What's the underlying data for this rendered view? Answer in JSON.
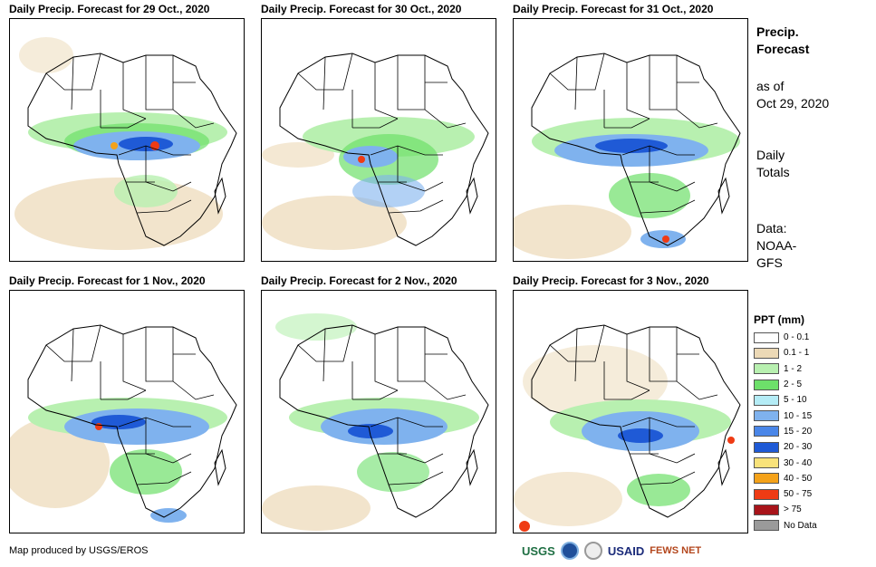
{
  "panels": [
    {
      "title": "Daily Precip. Forecast for 29 Oct., 2020"
    },
    {
      "title": "Daily Precip. Forecast for 30 Oct., 2020"
    },
    {
      "title": "Daily Precip. Forecast for 31 Oct., 2020"
    },
    {
      "title": "Daily Precip. Forecast for 1 Nov., 2020"
    },
    {
      "title": "Daily Precip. Forecast for 2 Nov., 2020"
    },
    {
      "title": "Daily Precip. Forecast for 3 Nov., 2020"
    }
  ],
  "sidebar": {
    "title_line1": "Precip.",
    "title_line2": "Forecast",
    "asof_line1": "as of",
    "asof_line2": "Oct 29, 2020",
    "totals_line1": "Daily",
    "totals_line2": "Totals",
    "data_line1": "Data:",
    "data_line2": "NOAA-",
    "data_line3": "GFS"
  },
  "legend": {
    "title": "PPT (mm)",
    "items": [
      {
        "label": "0 - 0.1",
        "color": "#ffffff"
      },
      {
        "label": "0.1 - 1",
        "color": "#ecd9b6"
      },
      {
        "label": "1 - 2",
        "color": "#b8f0b0"
      },
      {
        "label": "2 - 5",
        "color": "#6de06a"
      },
      {
        "label": "5 - 10",
        "color": "#b4ecf6"
      },
      {
        "label": "10 - 15",
        "color": "#7fb2ee"
      },
      {
        "label": "15 - 20",
        "color": "#4a86e8"
      },
      {
        "label": "20 - 30",
        "color": "#1f5ad6"
      },
      {
        "label": "30 - 40",
        "color": "#f8e27a"
      },
      {
        "label": "40 - 50",
        "color": "#f4a21a"
      },
      {
        "label": "50 - 75",
        "color": "#ef3b14"
      },
      {
        "label": "> 75",
        "color": "#a8141a"
      },
      {
        "label": "No Data",
        "color": "#9a9a9a"
      }
    ]
  },
  "footer": {
    "credit": "Map produced by USGS/EROS"
  },
  "logos": {
    "usgs": "USGS",
    "usaid": "USAID",
    "fews": "FEWS NET"
  }
}
